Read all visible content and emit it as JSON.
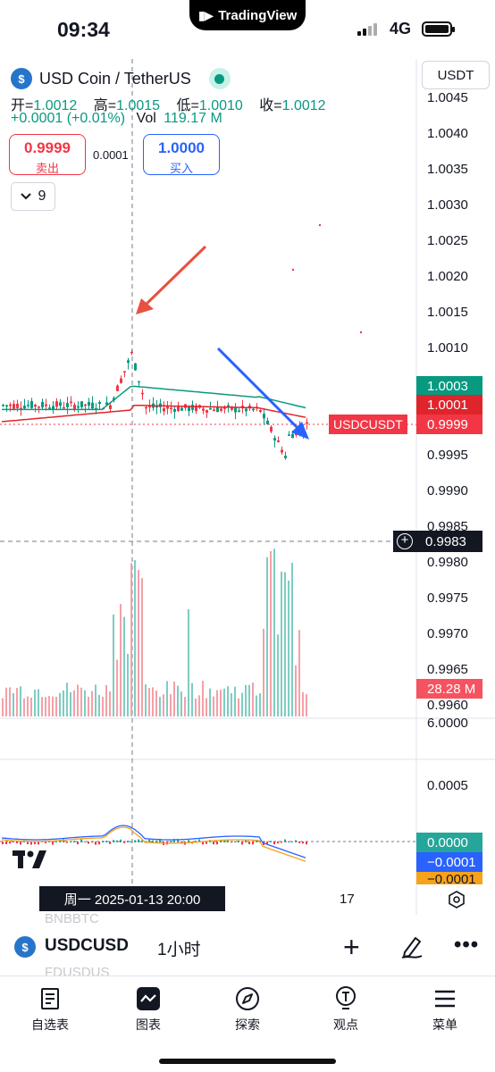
{
  "status_bar": {
    "time": "09:34",
    "app_pill": "TradingView",
    "network": "4G"
  },
  "header": {
    "title": "USD Coin / TetherUS",
    "currency": "USDT"
  },
  "ohlc": {
    "open_label": "开=",
    "open": "1.0012",
    "high_label": "高=",
    "high": "1.0015",
    "low_label": "低=",
    "low": "1.0010",
    "close_label": "收=",
    "close": "1.0012",
    "change": "+0.0001 (+0.01%)",
    "vol_label": "Vol",
    "vol": "119.17 M"
  },
  "trade": {
    "sell_price": "0.9999",
    "sell_label": "卖出",
    "spread": "0.0001",
    "buy_price": "1.0000",
    "buy_label": "买入"
  },
  "indicators": {
    "count": "9"
  },
  "price_axis": {
    "ticks": [
      "1.0045",
      "1.0040",
      "1.0035",
      "1.0030",
      "1.0025",
      "1.0020",
      "1.0015",
      "1.0010",
      "1.0005",
      "1.0000",
      "0.9995",
      "0.9990",
      "0.9985",
      "0.9980",
      "0.9975",
      "0.9970",
      "0.9965",
      "0.9960"
    ],
    "tag_green": "1.0003",
    "tag_red": "1.0001",
    "last_price": "0.9999",
    "symbol_tag": "USDCUSDT",
    "crosshair_price": "0.9983",
    "volume_tag": "28.28 M",
    "volume_top": "6.0000"
  },
  "macd_axis": {
    "tick": "0.0005",
    "tag_macd": "0.0000",
    "tag_signal": "−0.0001",
    "tag_hist": "−0.0001"
  },
  "time_axis": {
    "crosshair_date": "周一  2025-01-13   20:00",
    "tick_17": "17"
  },
  "ghost_text": [
    "BNBBTC",
    "FDUSDUS"
  ],
  "symbol_bar": {
    "symbol": "USDCUSD",
    "interval": "1小时"
  },
  "bottom_nav": [
    {
      "label": "自选表",
      "icon": "watchlist-icon"
    },
    {
      "label": "图表",
      "icon": "chart-icon"
    },
    {
      "label": "探索",
      "icon": "compass-icon"
    },
    {
      "label": "观点",
      "icon": "lightbulb-icon"
    },
    {
      "label": "菜单",
      "icon": "menu-icon"
    }
  ],
  "colors": {
    "up": "#089981",
    "down": "#f23645",
    "ma_green": "#089981",
    "ma_red": "#e0242b",
    "macd_blue": "#2962ff",
    "signal_orange": "#f7a21b",
    "accent_blue": "#2962ff"
  }
}
